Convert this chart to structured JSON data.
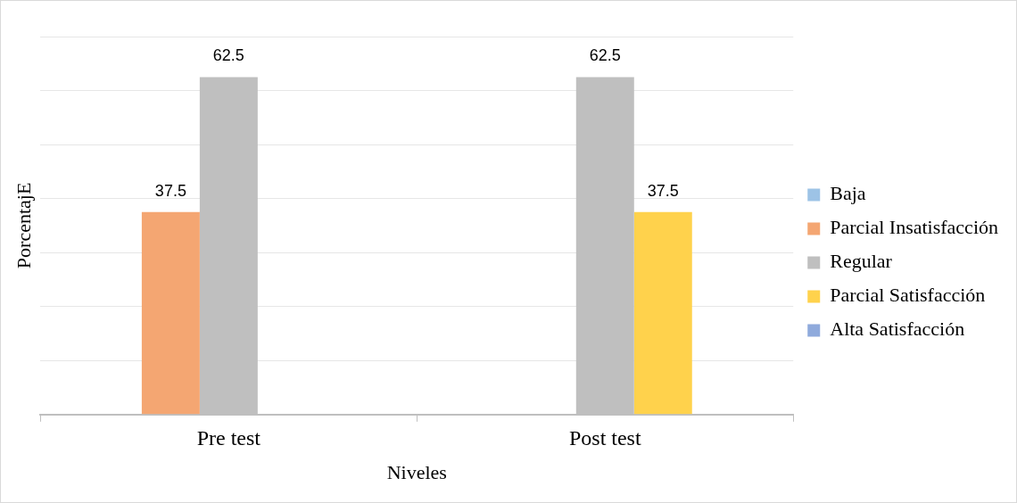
{
  "chart_data": {
    "type": "bar",
    "xlabel": "Niveles",
    "ylabel": "PorcentajE",
    "categories": [
      "Pre test",
      "Post test"
    ],
    "series": [
      {
        "name": "Baja",
        "color": "#9dc3e6",
        "values": [
          null,
          null
        ]
      },
      {
        "name": "Parcial Insatisfacción",
        "color": "#f4a672",
        "values": [
          37.5,
          null
        ]
      },
      {
        "name": "Regular",
        "color": "#bfbfbf",
        "values": [
          62.5,
          62.5
        ]
      },
      {
        "name": "Parcial Satisfacción",
        "color": "#ffd24c",
        "values": [
          null,
          37.5
        ]
      },
      {
        "name": "Alta Satisfacción",
        "color": "#8faadc",
        "values": [
          null,
          null
        ]
      }
    ],
    "ylim": [
      0,
      70
    ],
    "yticks": [
      {
        "value": 0,
        "label": null
      },
      {
        "value": 10,
        "label": null
      },
      {
        "value": 20,
        "label": null
      },
      {
        "value": 30,
        "label": null
      },
      {
        "value": 40,
        "label": null
      },
      {
        "value": 50,
        "label": null
      },
      {
        "value": 60,
        "label": null
      },
      {
        "value": 70,
        "label": null
      }
    ],
    "tick_labels": "x",
    "grid": "y",
    "legend": "right",
    "data_labels": true
  }
}
